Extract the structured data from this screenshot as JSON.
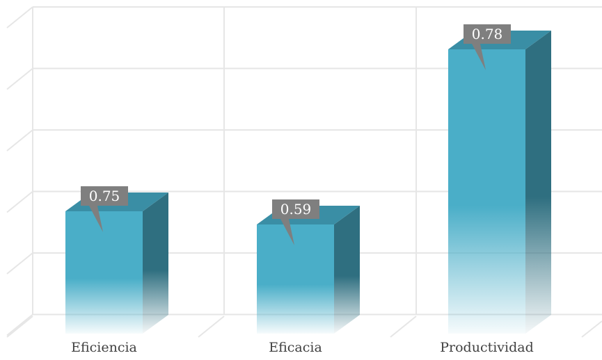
{
  "chart_data": {
    "type": "bar",
    "categories": [
      "Eficiencia",
      "Eficacia",
      "Productividad"
    ],
    "values": [
      0.75,
      0.59,
      0.78
    ],
    "data_labels": [
      "0.75",
      "0.59",
      "0.78"
    ],
    "title": "",
    "xlabel": "",
    "ylabel": "",
    "three_d": true,
    "grid": true,
    "legend": "none",
    "colors": {
      "bar_front": "#4aaec8",
      "bar_side": "#2f6f80",
      "bar_top": "#3a8ea5",
      "label_bg": "#7f7f7f",
      "label_text": "#ffffff",
      "grid": "#e6e6e6",
      "axis_text": "#404040"
    }
  }
}
